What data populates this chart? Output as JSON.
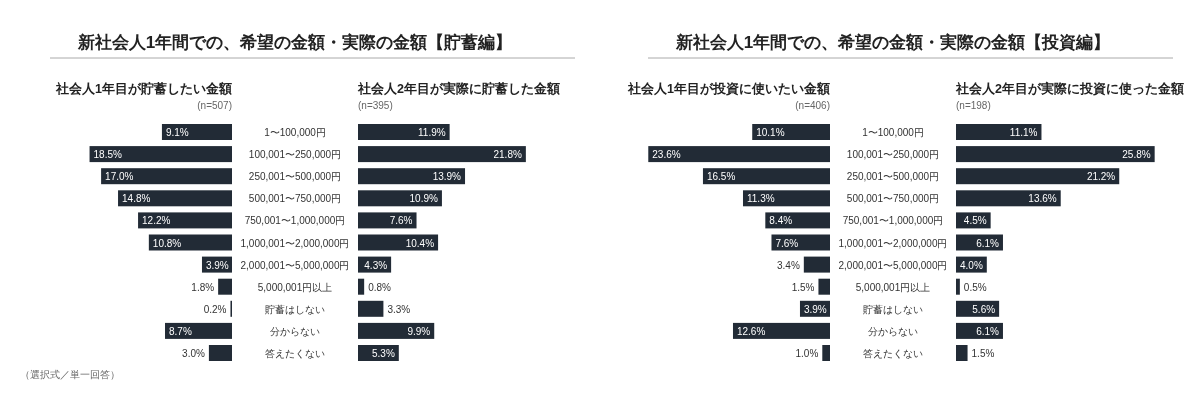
{
  "chart_data": [
    {
      "type": "bar",
      "orientation": "horizontal",
      "title": "新社会人1年間での、希望の金額・実際の金額【貯蓄編】",
      "subtitle": "社会人1年目が貯蓄したい金額",
      "annotations": [
        "(n=507)",
        "（選択式／単一回答）"
      ],
      "color": "#222b36",
      "categories": [
        "1〜100,000円",
        "100,001〜250,000円",
        "250,001〜500,000円",
        "500,001〜750,000円",
        "750,001〜1,000,000円",
        "1,000,001〜2,000,000円",
        "2,000,001〜5,000,000円",
        "5,000,001円以上",
        "貯蓄はしない",
        "分からない",
        "答えたくない"
      ],
      "values": [
        9.1,
        18.5,
        17.0,
        14.8,
        12.2,
        10.8,
        3.9,
        1.8,
        0.2,
        8.7,
        3.0
      ],
      "value_labels": [
        "9.1%",
        "18.5%",
        "17.0%",
        "14.8%",
        "12.2%",
        "10.8%",
        "3.9%",
        "1.8%",
        "0.2%",
        "8.7%",
        "3.0%"
      ]
    },
    {
      "type": "bar",
      "orientation": "horizontal",
      "title": "社会人2年目が実際に貯蓄した金額",
      "annotations": [
        "(n=395)"
      ],
      "color": "#222b36",
      "categories": [
        null,
        null,
        null,
        null,
        null,
        null,
        null,
        null,
        null,
        null,
        null
      ],
      "values": [
        11.9,
        21.8,
        13.9,
        10.9,
        7.6,
        10.4,
        4.3,
        0.8,
        3.3,
        9.9,
        5.3
      ],
      "value_labels": [
        "11.9%",
        "21.8%",
        "13.9%",
        "10.9%",
        "7.6%",
        "10.4%",
        "4.3%",
        "0.8%",
        "3.3%",
        "9.9%",
        "5.3%"
      ]
    },
    {
      "type": "bar",
      "orientation": "horizontal",
      "title": "新社会人1年間での、希望の金額・実際の金額【投資編】",
      "subtitle": "社会人1年目が投資に使いたい金額",
      "annotations": [
        "(n=406)"
      ],
      "color": "#222b36",
      "categories": [
        "1〜100,000円",
        "100,001〜250,000円",
        "250,001〜500,000円",
        "500,001〜750,000円",
        "750,001〜1,000,000円",
        "1,000,001〜2,000,000円",
        "2,000,001〜5,000,000円",
        "5,000,001円以上",
        "貯蓄はしない",
        "分からない",
        "答えたくない"
      ],
      "values": [
        10.1,
        23.6,
        16.5,
        11.3,
        8.4,
        7.6,
        3.4,
        1.5,
        3.9,
        12.6,
        1.0
      ],
      "value_labels": [
        "10.1%",
        "23.6%",
        "16.5%",
        "11.3%",
        "8.4%",
        "7.6%",
        "3.4%",
        "1.5%",
        "3.9%",
        "12.6%",
        "1.0%"
      ]
    },
    {
      "type": "bar",
      "orientation": "horizontal",
      "title": "社会人2年目が実際に投資に使った金額",
      "annotations": [
        "(n=198)"
      ],
      "color": "#222b36",
      "categories": [
        null,
        null,
        null,
        null,
        null,
        null,
        null,
        null,
        null,
        null,
        null
      ],
      "values": [
        11.1,
        25.8,
        21.2,
        13.6,
        4.5,
        6.1,
        4.0,
        0.5,
        5.6,
        6.1,
        1.5
      ],
      "value_labels": [
        "11.1%",
        "25.8%",
        "21.2%",
        "13.6%",
        "4.5%",
        "6.1%",
        "4.0%",
        "0.5%",
        "5.6%",
        "6.1%",
        "1.5%"
      ]
    }
  ]
}
